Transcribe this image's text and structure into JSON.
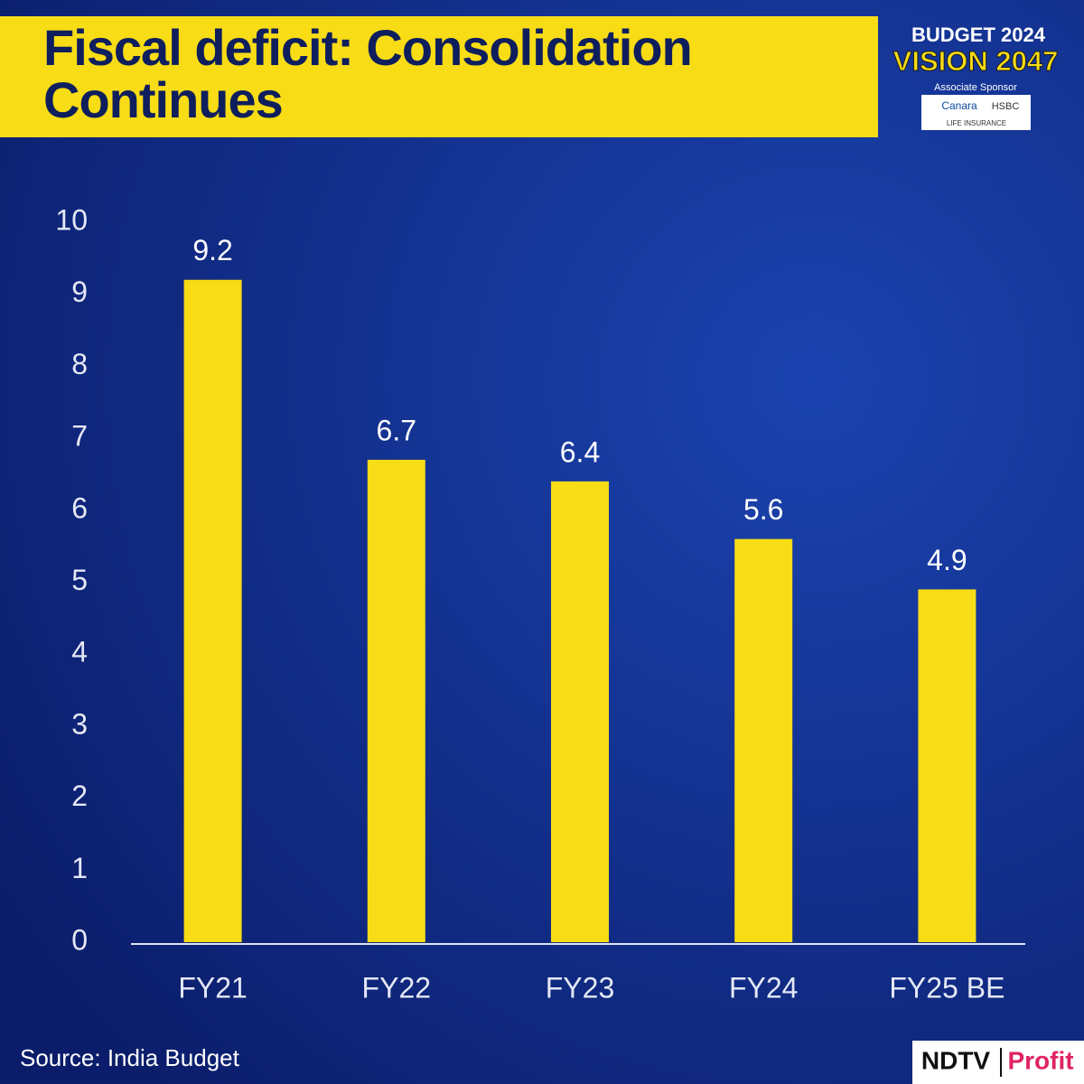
{
  "chart_data": {
    "type": "bar",
    "title": "Fiscal deficit: Consolidation Continues",
    "categories": [
      "FY21",
      "FY22",
      "FY23",
      "FY24",
      "FY25 BE"
    ],
    "values": [
      9.2,
      6.7,
      6.4,
      5.6,
      4.9
    ],
    "color": "#f7dc16",
    "ylim": [
      0,
      10
    ],
    "yticks": [
      0,
      1,
      2,
      3,
      4,
      5,
      6,
      7,
      8,
      9,
      10
    ],
    "grid": false,
    "source": "Source: India Budget"
  },
  "branding": {
    "event": "BUDGET 2024",
    "vision": "VISION 2047",
    "sponsor_label": "Associate Sponsor",
    "sponsor_left": "Canara",
    "sponsor_right": "HSBC",
    "sponsor_sub": "LIFE INSURANCE",
    "logo_left": "NDTV",
    "logo_right": "Profit"
  }
}
